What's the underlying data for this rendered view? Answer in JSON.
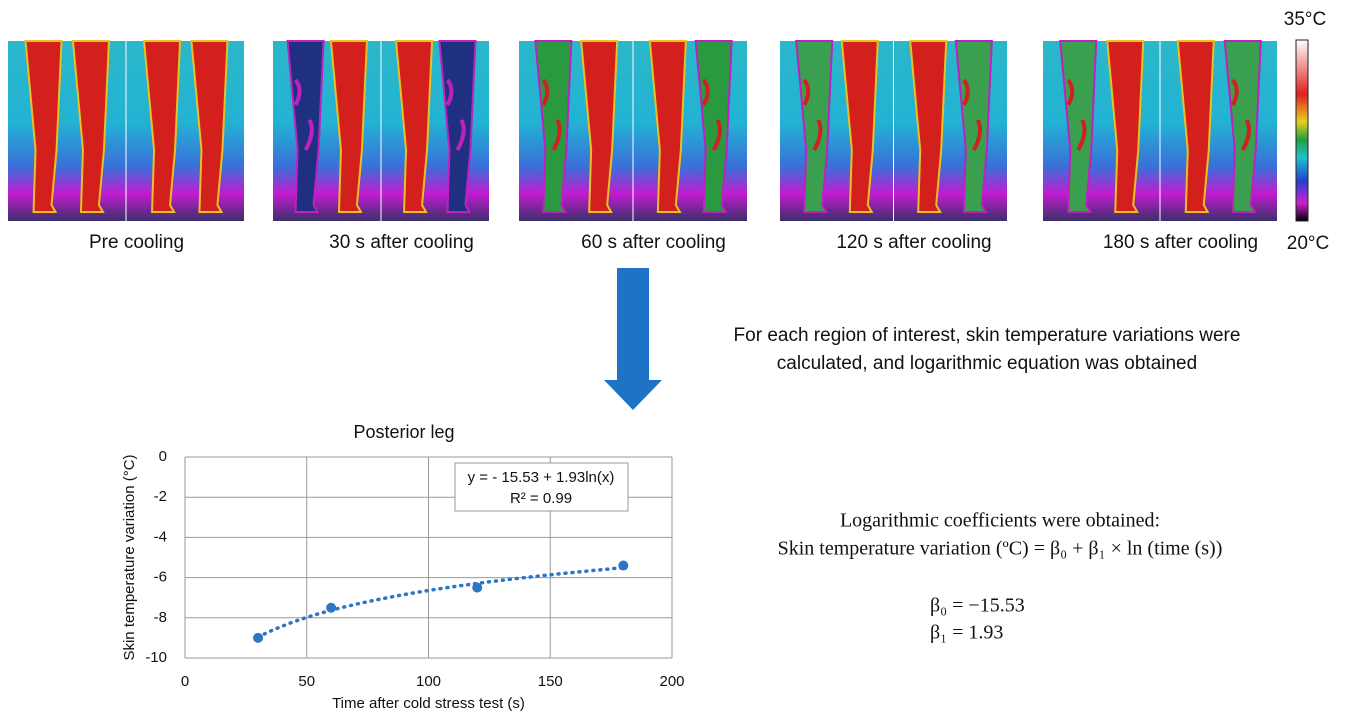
{
  "panels": [
    {
      "label": "Pre cooling"
    },
    {
      "label": "30 s after cooling"
    },
    {
      "label": "60 s after cooling"
    },
    {
      "label": "120 s after cooling"
    },
    {
      "label": "180 s after cooling"
    }
  ],
  "colorbar": {
    "max_label": "35°C",
    "min_label": "20°C"
  },
  "description": [
    "For each region of interest, skin temperature variations were",
    "calculated, and logarithmic equation was obtained"
  ],
  "coefficients": {
    "heading": "Logarithmic coefficients were obtained:",
    "formula": "Skin temperature variation (ºC) = β₀ + β₁ × ln (time (s))",
    "beta0": "β₀ = −15.53",
    "beta1": "β₁ =   1.93"
  },
  "chart_data": {
    "type": "scatter",
    "title": "Posterior leg",
    "x_label": "Time after cold stress test (s)",
    "y_label": "Skin temperature variation (°C)",
    "x": [
      30,
      60,
      120,
      180
    ],
    "values": [
      -9,
      -7.5,
      -6.5,
      -5.4
    ],
    "color": "#2e75c6",
    "xlim": [
      0,
      200
    ],
    "xticks": [
      0,
      50,
      100,
      150,
      200
    ],
    "ylim": [
      -10,
      0
    ],
    "yticks": [
      0,
      -2,
      -4,
      -6,
      -8,
      -10
    ],
    "grid": true,
    "trendline": {
      "intercept": -15.53,
      "slope": 1.93,
      "label": "y = - 15.53 + 1.93ln(x)",
      "r2_label": "R² = 0.99"
    }
  }
}
